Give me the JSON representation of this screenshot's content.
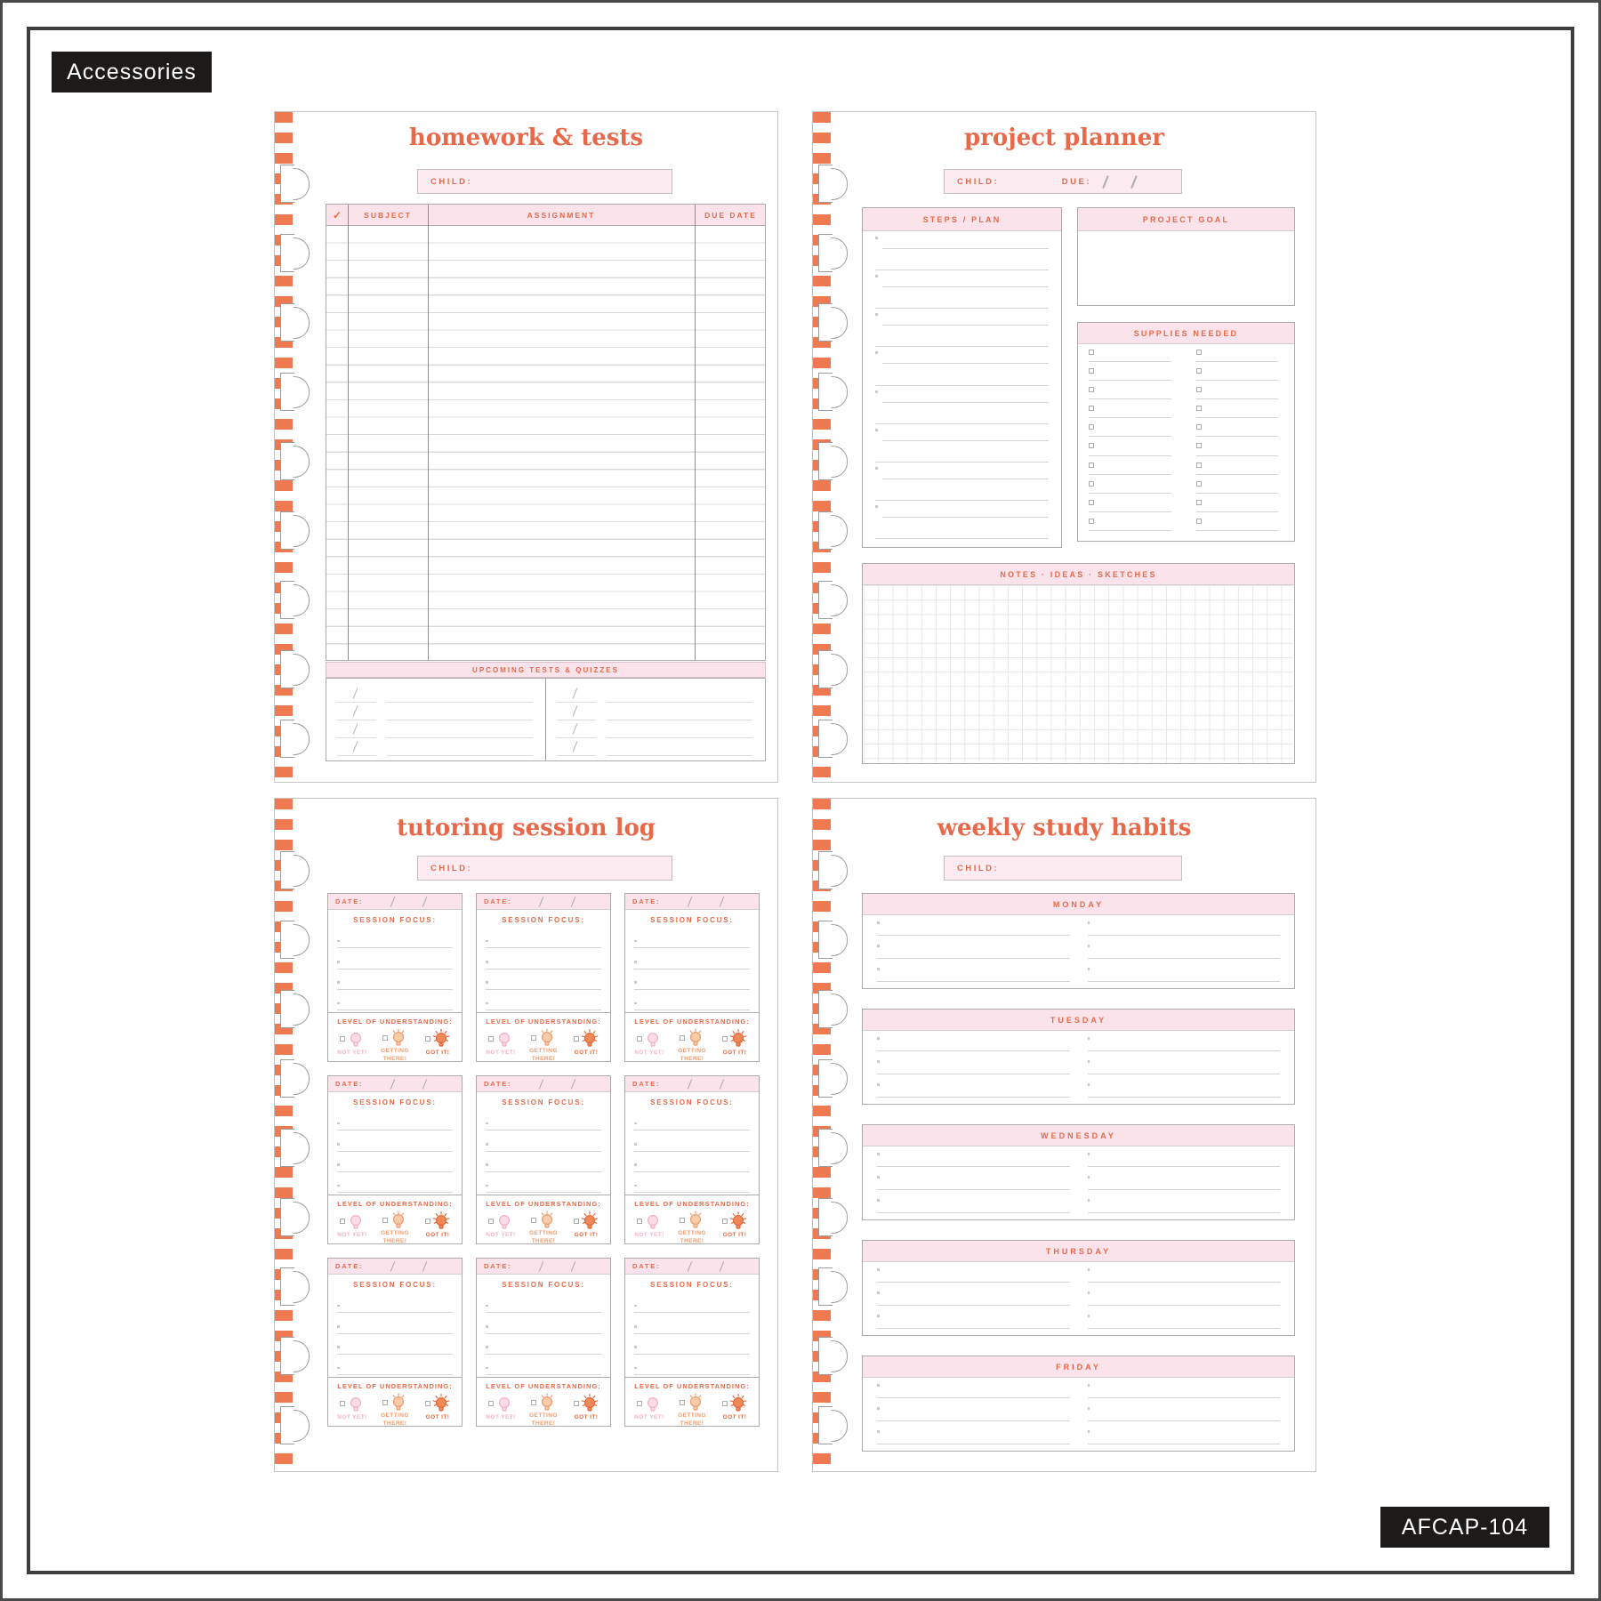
{
  "frame": {
    "accessories_badge": "Accessories",
    "sku_badge": "AFCAP-104"
  },
  "colors": {
    "accent_orange": "#E8694A",
    "stripe_orange": "#EF7A52",
    "pink_band": "#FBE3EB",
    "pink_field": "#FCEBF1",
    "badge_black": "#1D1B19",
    "level_not_yet": "#F3B3C4",
    "level_getting_there": "#EF9B6C",
    "level_got_it": "#E5683C"
  },
  "pages": {
    "homework": {
      "title": "homework & tests",
      "child_label": "CHILD:",
      "table": {
        "check_mark": "✓",
        "col_subject": "SUBJECT",
        "col_assignment": "ASSIGNMENT",
        "col_due": "DUE DATE",
        "blank_rows": 25
      },
      "upcoming_label": "UPCOMING TESTS & QUIZZES",
      "upcoming_rows_per_column": 4
    },
    "project": {
      "title": "project planner",
      "child_label": "CHILD:",
      "due_label": "DUE:",
      "steps_label": "STEPS / PLAN",
      "steps_items": 8,
      "goal_label": "PROJECT GOAL",
      "supplies_label": "SUPPLIES NEEDED",
      "supplies_rows_per_column": 10,
      "notes_label": "NOTES · IDEAS · SKETCHES"
    },
    "tutoring": {
      "title": "tutoring session log",
      "child_label": "CHILD:",
      "cards": 9,
      "card": {
        "date_label": "DATE:",
        "focus_label": "SESSION FOCUS:",
        "focus_lines": 4,
        "understanding_label": "LEVEL OF UNDERSTANDING:",
        "levels": [
          "NOT YET!",
          "GETTING THERE!",
          "GOT IT!"
        ]
      }
    },
    "weekly": {
      "title": "weekly study habits",
      "child_label": "CHILD:",
      "days": [
        "MONDAY",
        "TUESDAY",
        "WEDNESDAY",
        "THURSDAY",
        "FRIDAY"
      ],
      "lines_per_day_column": 3
    }
  }
}
